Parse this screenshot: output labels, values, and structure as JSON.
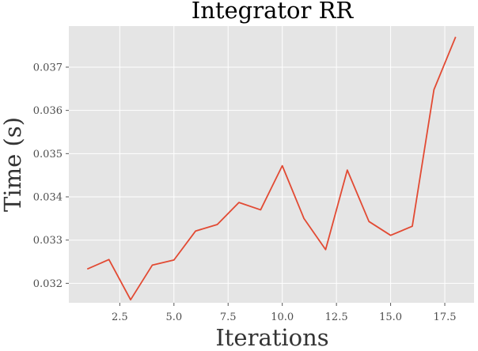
{
  "chart_data": {
    "type": "line",
    "title": "Integrator RR",
    "xlabel": "Iterations",
    "ylabel": "Time (s)",
    "xlim": [
      0.15,
      18.85
    ],
    "ylim": [
      0.03155,
      0.03795
    ],
    "xticks": [
      2.5,
      5.0,
      7.5,
      10.0,
      12.5,
      15.0,
      17.5
    ],
    "xtick_labels": [
      "2.5",
      "5.0",
      "7.5",
      "10.0",
      "12.5",
      "15.0",
      "17.5"
    ],
    "yticks": [
      0.032,
      0.033,
      0.034,
      0.035,
      0.036,
      0.037
    ],
    "ytick_labels": [
      "0.032",
      "0.033",
      "0.034",
      "0.035",
      "0.036",
      "0.037"
    ],
    "grid": true,
    "style": "ggplot",
    "colors": {
      "background": "#e5e5e5",
      "grid": "#ffffff",
      "line": "#e24a33"
    },
    "series": [
      {
        "x": [
          1,
          2,
          3,
          4,
          5,
          6,
          7,
          8,
          9,
          10,
          11,
          12,
          13,
          14,
          15,
          16,
          17,
          18
        ],
        "values": [
          0.03233,
          0.03255,
          0.03162,
          0.03242,
          0.03254,
          0.03321,
          0.03336,
          0.03387,
          0.0337,
          0.03472,
          0.0335,
          0.03278,
          0.03462,
          0.03343,
          0.03311,
          0.03332,
          0.03648,
          0.0377
        ]
      }
    ]
  }
}
